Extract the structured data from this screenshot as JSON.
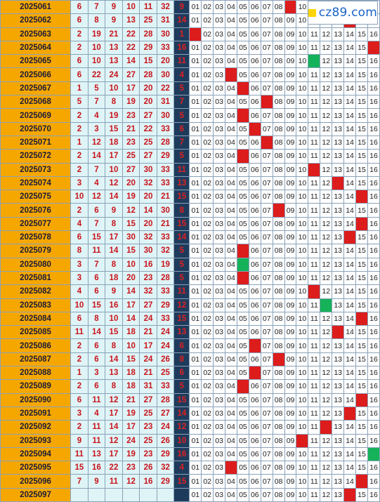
{
  "logo": {
    "text": "cz89.com",
    "icon": "yellow-square-icon"
  },
  "colors": {
    "period_bg": "#f5a700",
    "number_bg": "#dff4f6",
    "blue_col_bg": "#1f3b5c",
    "hit": "#dd1c1c",
    "marker_green": "#16b25a"
  },
  "cells": [
    "01",
    "02",
    "03",
    "04",
    "05",
    "06",
    "07",
    "08",
    "09",
    "10",
    "11",
    "12",
    "13",
    "14",
    "15",
    "16"
  ],
  "rows": [
    {
      "period": "2025061",
      "reds": [
        "6",
        "7",
        "9",
        "10",
        "11",
        "32"
      ],
      "blue": "9"
    },
    {
      "period": "2025062",
      "reds": [
        "6",
        "8",
        "9",
        "13",
        "25",
        "31"
      ],
      "blue": "14"
    },
    {
      "period": "2025063",
      "reds": [
        "2",
        "19",
        "21",
        "22",
        "28",
        "30"
      ],
      "blue": "1"
    },
    {
      "period": "2025064",
      "reds": [
        "2",
        "10",
        "13",
        "22",
        "29",
        "33"
      ],
      "blue": "16"
    },
    {
      "period": "2025065",
      "reds": [
        "6",
        "10",
        "13",
        "14",
        "15",
        "20"
      ],
      "blue": "11"
    },
    {
      "period": "2025066",
      "reds": [
        "6",
        "22",
        "24",
        "27",
        "28",
        "30"
      ],
      "blue": "4"
    },
    {
      "period": "2025067",
      "reds": [
        "1",
        "5",
        "10",
        "17",
        "20",
        "22"
      ],
      "blue": "5"
    },
    {
      "period": "2025068",
      "reds": [
        "5",
        "7",
        "8",
        "19",
        "20",
        "31"
      ],
      "blue": "7"
    },
    {
      "period": "2025069",
      "reds": [
        "2",
        "4",
        "19",
        "23",
        "27",
        "30"
      ],
      "blue": "5"
    },
    {
      "period": "2025070",
      "reds": [
        "2",
        "3",
        "15",
        "21",
        "22",
        "33"
      ],
      "blue": "6"
    },
    {
      "period": "2025071",
      "reds": [
        "1",
        "12",
        "18",
        "23",
        "25",
        "28"
      ],
      "blue": "7"
    },
    {
      "period": "2025072",
      "reds": [
        "2",
        "14",
        "17",
        "25",
        "27",
        "29"
      ],
      "blue": "5"
    },
    {
      "period": "2025073",
      "reds": [
        "2",
        "7",
        "10",
        "27",
        "30",
        "33"
      ],
      "blue": "11"
    },
    {
      "period": "2025074",
      "reds": [
        "3",
        "4",
        "12",
        "20",
        "32",
        "33"
      ],
      "blue": "13"
    },
    {
      "period": "2025075",
      "reds": [
        "10",
        "12",
        "14",
        "19",
        "20",
        "21"
      ],
      "blue": "15"
    },
    {
      "period": "2025076",
      "reds": [
        "2",
        "6",
        "9",
        "12",
        "14",
        "30"
      ],
      "blue": "8"
    },
    {
      "period": "2025077",
      "reds": [
        "4",
        "7",
        "8",
        "15",
        "20",
        "21"
      ],
      "blue": "15"
    },
    {
      "period": "2025078",
      "reds": [
        "6",
        "15",
        "17",
        "30",
        "32",
        "33"
      ],
      "blue": "14"
    },
    {
      "period": "2025079",
      "reds": [
        "8",
        "11",
        "14",
        "15",
        "30",
        "32"
      ],
      "blue": "5"
    },
    {
      "period": "2025080",
      "reds": [
        "3",
        "7",
        "8",
        "10",
        "16",
        "19"
      ],
      "blue": "5"
    },
    {
      "period": "2025081",
      "reds": [
        "3",
        "6",
        "18",
        "20",
        "23",
        "28"
      ],
      "blue": "5"
    },
    {
      "period": "2025082",
      "reds": [
        "4",
        "6",
        "9",
        "14",
        "32",
        "33"
      ],
      "blue": "11"
    },
    {
      "period": "2025083",
      "reds": [
        "10",
        "15",
        "16",
        "17",
        "27",
        "29"
      ],
      "blue": "12"
    },
    {
      "period": "2025084",
      "reds": [
        "6",
        "8",
        "10",
        "14",
        "24",
        "33"
      ],
      "blue": "15"
    },
    {
      "period": "2025085",
      "reds": [
        "11",
        "14",
        "15",
        "18",
        "21",
        "24"
      ],
      "blue": "13"
    },
    {
      "period": "2025086",
      "reds": [
        "2",
        "6",
        "8",
        "10",
        "17",
        "24"
      ],
      "blue": "6"
    },
    {
      "period": "2025087",
      "reds": [
        "2",
        "6",
        "14",
        "15",
        "24",
        "26"
      ],
      "blue": "8"
    },
    {
      "period": "2025088",
      "reds": [
        "1",
        "3",
        "13",
        "18",
        "21",
        "25"
      ],
      "blue": "6"
    },
    {
      "period": "2025089",
      "reds": [
        "2",
        "6",
        "8",
        "18",
        "31",
        "33"
      ],
      "blue": "5"
    },
    {
      "period": "2025090",
      "reds": [
        "6",
        "11",
        "12",
        "21",
        "27",
        "28"
      ],
      "blue": "15"
    },
    {
      "period": "2025091",
      "reds": [
        "3",
        "4",
        "17",
        "19",
        "25",
        "27"
      ],
      "blue": "14"
    },
    {
      "period": "2025092",
      "reds": [
        "2",
        "11",
        "14",
        "17",
        "23",
        "24"
      ],
      "blue": "12"
    },
    {
      "period": "2025093",
      "reds": [
        "9",
        "11",
        "12",
        "24",
        "25",
        "26"
      ],
      "blue": "10"
    },
    {
      "period": "2025094",
      "reds": [
        "11",
        "13",
        "17",
        "19",
        "23",
        "29"
      ],
      "blue": "16"
    },
    {
      "period": "2025095",
      "reds": [
        "15",
        "16",
        "22",
        "23",
        "26",
        "32"
      ],
      "blue": "4"
    },
    {
      "period": "2025096",
      "reds": [
        "7",
        "9",
        "11",
        "12",
        "16",
        "29"
      ],
      "blue": "15"
    },
    {
      "period": "2025097",
      "reds": [
        "",
        "",
        "",
        "",
        "",
        ""
      ],
      "blue": ""
    }
  ],
  "markers": [
    {
      "row": 4,
      "col": 11,
      "type": "green"
    },
    {
      "row": 19,
      "col": 5,
      "type": "green"
    },
    {
      "row": 22,
      "col": 12,
      "type": "green"
    },
    {
      "row": 33,
      "col": 16,
      "type": "green"
    },
    {
      "row": 36,
      "col": 14,
      "type": "hit"
    }
  ]
}
